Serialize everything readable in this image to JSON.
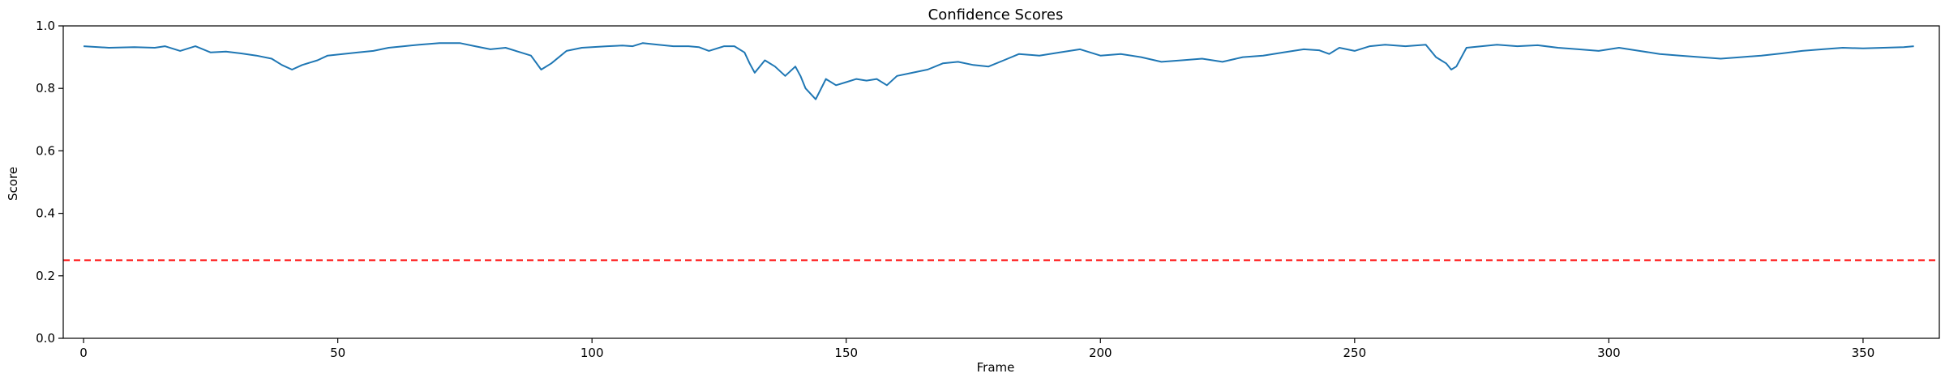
{
  "chart_data": {
    "type": "line",
    "title": "Confidence Scores",
    "xlabel": "Frame",
    "ylabel": "Score",
    "xlim": [
      -4,
      365
    ],
    "ylim": [
      0.0,
      1.0
    ],
    "x_ticks": [
      0,
      50,
      100,
      150,
      200,
      250,
      300,
      350
    ],
    "y_ticks": [
      0.0,
      0.2,
      0.4,
      0.6,
      0.8,
      1.0
    ],
    "y_tick_labels": [
      "0.0",
      "0.2",
      "0.4",
      "0.6",
      "0.8",
      "1.0"
    ],
    "grid": false,
    "line_color": "#1f77b4",
    "threshold": {
      "value": 0.25,
      "style": "dashed",
      "color": "#ff0000"
    },
    "series": [
      {
        "x": [
          0,
          5,
          10,
          14,
          16,
          19,
          22,
          25,
          28,
          31,
          34,
          37,
          39,
          41,
          43,
          46,
          48,
          51,
          54,
          57,
          60,
          63,
          66,
          70,
          74,
          77,
          80,
          83,
          86,
          88,
          90,
          92,
          95,
          98,
          100,
          103,
          106,
          108,
          110,
          113,
          116,
          119,
          121,
          123,
          126,
          128,
          130,
          131,
          132,
          134,
          136,
          138,
          140,
          141,
          142,
          144,
          146,
          148,
          150,
          152,
          154,
          156,
          158,
          160,
          163,
          166,
          169,
          172,
          175,
          178,
          181,
          184,
          188,
          192,
          196,
          200,
          204,
          208,
          212,
          216,
          220,
          224,
          228,
          232,
          236,
          240,
          243,
          245,
          247,
          250,
          253,
          256,
          260,
          264,
          266,
          268,
          269,
          270,
          272,
          275,
          278,
          282,
          286,
          290,
          294,
          298,
          302,
          306,
          310,
          314,
          318,
          322,
          326,
          330,
          334,
          338,
          342,
          346,
          350,
          354,
          358,
          360
        ],
        "y": [
          0.935,
          0.93,
          0.932,
          0.93,
          0.935,
          0.92,
          0.935,
          0.915,
          0.918,
          0.912,
          0.905,
          0.895,
          0.875,
          0.86,
          0.875,
          0.89,
          0.905,
          0.91,
          0.915,
          0.92,
          0.93,
          0.935,
          0.94,
          0.945,
          0.945,
          0.935,
          0.925,
          0.93,
          0.915,
          0.905,
          0.86,
          0.88,
          0.92,
          0.93,
          0.932,
          0.935,
          0.937,
          0.935,
          0.945,
          0.94,
          0.935,
          0.935,
          0.932,
          0.92,
          0.935,
          0.935,
          0.915,
          0.88,
          0.85,
          0.89,
          0.87,
          0.84,
          0.87,
          0.84,
          0.8,
          0.765,
          0.83,
          0.81,
          0.82,
          0.83,
          0.825,
          0.83,
          0.81,
          0.84,
          0.85,
          0.86,
          0.88,
          0.885,
          0.875,
          0.87,
          0.89,
          0.91,
          0.905,
          0.915,
          0.925,
          0.905,
          0.91,
          0.9,
          0.885,
          0.89,
          0.895,
          0.885,
          0.9,
          0.905,
          0.915,
          0.925,
          0.922,
          0.91,
          0.93,
          0.92,
          0.935,
          0.94,
          0.935,
          0.94,
          0.9,
          0.88,
          0.86,
          0.87,
          0.93,
          0.935,
          0.94,
          0.935,
          0.938,
          0.93,
          0.925,
          0.92,
          0.93,
          0.92,
          0.91,
          0.905,
          0.9,
          0.895,
          0.9,
          0.905,
          0.912,
          0.92,
          0.925,
          0.93,
          0.928,
          0.93,
          0.932,
          0.935
        ]
      }
    ]
  }
}
